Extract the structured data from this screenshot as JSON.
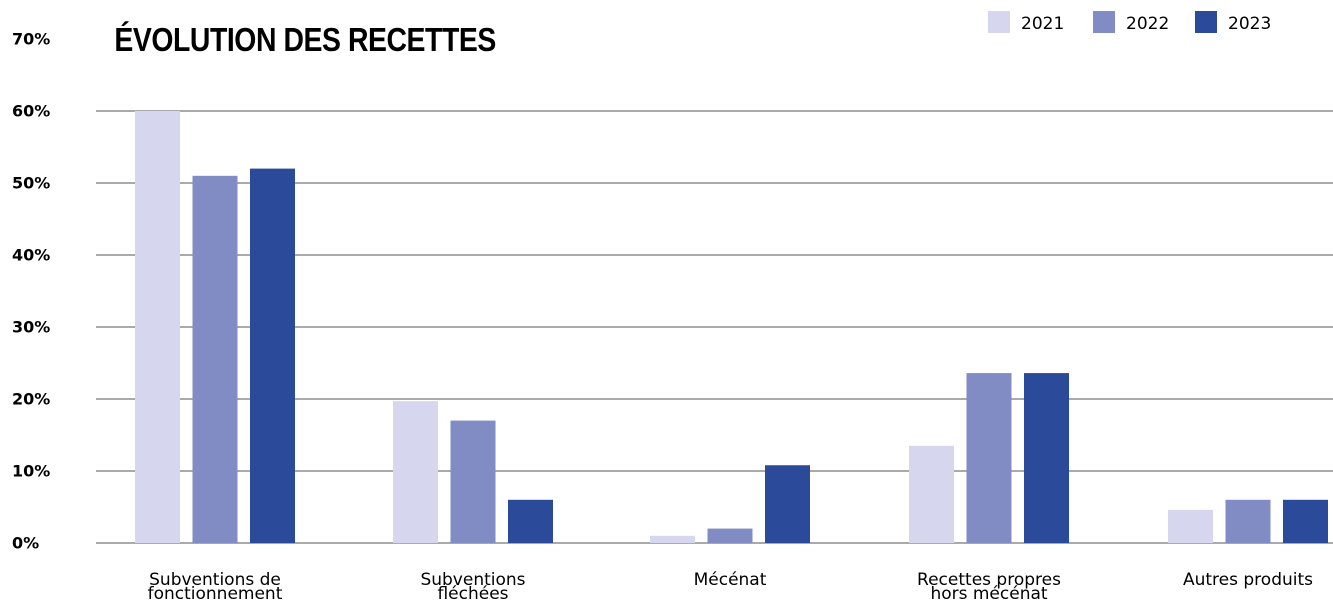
{
  "chart_data": {
    "type": "bar",
    "title": "ÉVOLUTION DES RECETTES",
    "xlabel": "",
    "ylabel": "",
    "ylim": [
      0,
      70
    ],
    "yticks": [
      "0%",
      "10%",
      "20%",
      "30%",
      "40%",
      "50%",
      "60%",
      "70%"
    ],
    "grid": true,
    "legend_position": "top-right",
    "categories": [
      [
        "Subventions de",
        "fonctionnement"
      ],
      [
        "Subventions",
        "fléchées"
      ],
      [
        "Mécénat"
      ],
      [
        "Recettes propres",
        "hors mécénat"
      ],
      [
        "Autres produits"
      ]
    ],
    "series": [
      {
        "name": "2021",
        "color": "#d6d6ee",
        "values": [
          60,
          19.7,
          1,
          13.5,
          4.6
        ]
      },
      {
        "name": "2022",
        "color": "#808cc3",
        "values": [
          51,
          17,
          2,
          23.6,
          6
        ]
      },
      {
        "name": "2023",
        "color": "#2c4a9a",
        "values": [
          52,
          6,
          10.8,
          23.6,
          6
        ]
      }
    ]
  }
}
